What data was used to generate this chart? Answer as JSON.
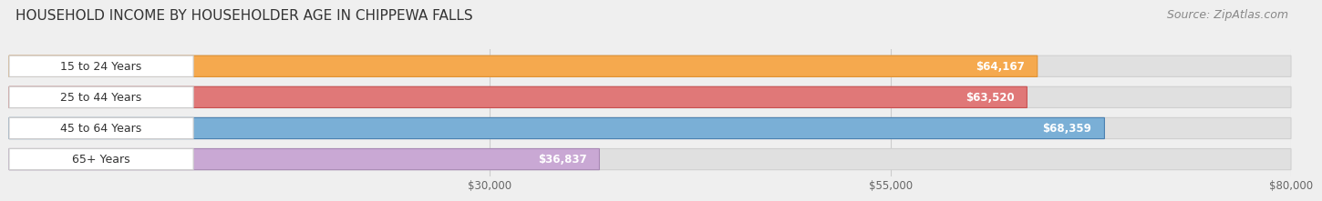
{
  "title": "HOUSEHOLD INCOME BY HOUSEHOLDER AGE IN CHIPPEWA FALLS",
  "source": "Source: ZipAtlas.com",
  "categories": [
    "15 to 24 Years",
    "25 to 44 Years",
    "45 to 64 Years",
    "65+ Years"
  ],
  "values": [
    64167,
    63520,
    68359,
    36837
  ],
  "labels": [
    "$64,167",
    "$63,520",
    "$68,359",
    "$36,837"
  ],
  "bar_colors": [
    "#F5A94E",
    "#E07878",
    "#7AAFD6",
    "#C9A8D4"
  ],
  "bar_edge_colors": [
    "#E09030",
    "#C85050",
    "#4A80B0",
    "#A888B4"
  ],
  "xlim": [
    0,
    80000
  ],
  "xticks": [
    30000,
    55000,
    80000
  ],
  "xticklabels": [
    "$30,000",
    "$55,000",
    "$80,000"
  ],
  "background_color": "#efefef",
  "bar_bg_color": "#e0e0e0",
  "title_fontsize": 11,
  "source_fontsize": 9,
  "label_fontsize": 8.5,
  "category_fontsize": 9
}
